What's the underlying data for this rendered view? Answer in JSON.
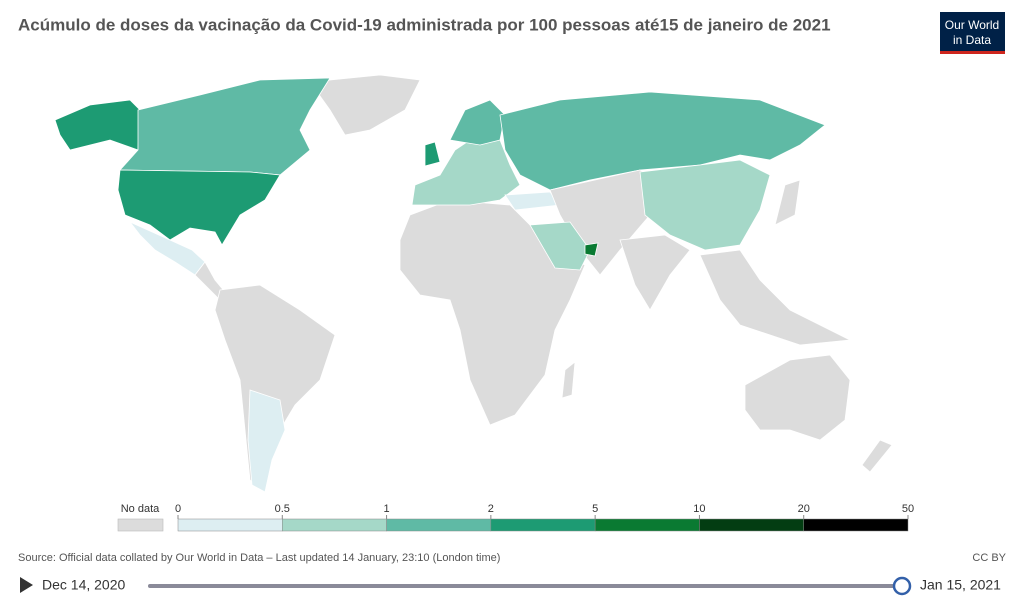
{
  "header": {
    "title": "Acúmulo de doses da vacinação da Covid-19 administrada por 100 pessoas até15 de janeiro de 2021",
    "logo": [
      "Our World",
      "in Data"
    ]
  },
  "legend": {
    "no_data": "No data",
    "bins": [
      0,
      0.5,
      1,
      2,
      5,
      10,
      20,
      50
    ],
    "colors": [
      "#ddeef2",
      "#a5d8c8",
      "#5fbaa5",
      "#1d9b73",
      "#0a7a32",
      "#033d12",
      "#000000"
    ],
    "no_data_color": "#dcdcdc"
  },
  "footer": {
    "source": "Source: Official data collated by Our World in Data – Last updated 14 January, 23:10 (London time)",
    "license": "CC BY"
  },
  "timeline": {
    "start": "Dec 14, 2020",
    "end": "Jan 15, 2021"
  }
}
